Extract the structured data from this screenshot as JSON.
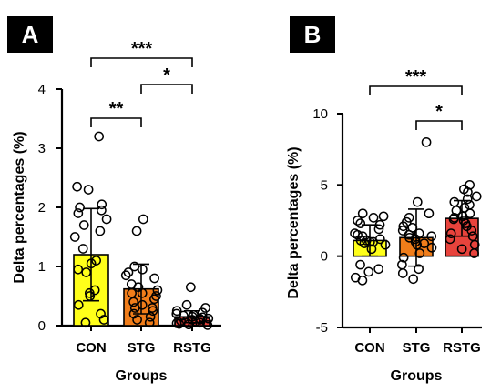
{
  "chart_data": [
    {
      "panel": "A",
      "type": "bar",
      "categories": [
        "CON",
        "STG",
        "RSTG"
      ],
      "values": [
        1.2,
        0.62,
        0.15
      ],
      "errors": [
        0.78,
        0.42,
        0.1
      ],
      "colors": [
        "#ffff1a",
        "#f07d1a",
        "#e8433c"
      ],
      "points": [
        [
          3.2,
          2.35,
          2.3,
          2.05,
          2.0,
          1.95,
          1.9,
          1.8,
          1.7,
          1.6,
          1.5,
          1.3,
          1.1,
          1.05,
          0.95,
          0.9,
          0.6,
          0.55,
          0.5,
          0.35,
          0.2,
          0.1,
          0.05
        ],
        [
          1.8,
          1.6,
          1.0,
          0.95,
          0.9,
          0.85,
          0.8,
          0.7,
          0.65,
          0.6,
          0.55,
          0.55,
          0.5,
          0.45,
          0.4,
          0.35,
          0.3,
          0.3,
          0.25,
          0.2,
          0.15,
          0.1,
          0.05
        ],
        [
          0.65,
          0.35,
          0.3,
          0.25,
          0.22,
          0.2,
          0.18,
          0.17,
          0.15,
          0.14,
          0.12,
          0.12,
          0.1,
          0.1,
          0.08,
          0.07,
          0.06,
          0.05,
          0.05,
          0.04,
          0.03,
          0.02,
          0.01
        ]
      ],
      "ylim": [
        0,
        4
      ],
      "yticks": [
        "0",
        "1",
        "2",
        "3",
        "4"
      ],
      "ylabel": "Delta percentages (%)",
      "xlabel": "Groups",
      "comparisons": [
        {
          "from": 0,
          "to": 1,
          "label": "**"
        },
        {
          "from": 1,
          "to": 2,
          "label": "*"
        },
        {
          "from": 0,
          "to": 2,
          "label": "***"
        }
      ]
    },
    {
      "panel": "B",
      "type": "bar",
      "categories": [
        "CON",
        "STG",
        "RSTG"
      ],
      "values": [
        1.1,
        1.3,
        2.65
      ],
      "errors": [
        1.1,
        2.0,
        1.25
      ],
      "colors": [
        "#ffff1a",
        "#f07d1a",
        "#e8433c"
      ],
      "points": [
        [
          3.0,
          2.8,
          2.7,
          2.5,
          2.3,
          2.2,
          1.9,
          1.6,
          1.5,
          1.4,
          1.2,
          1.1,
          1.1,
          1.0,
          1.0,
          0.9,
          0.8,
          0.5,
          -0.6,
          -0.9,
          -1.1,
          -1.5,
          -1.7
        ],
        [
          8.0,
          3.8,
          3.0,
          2.7,
          2.4,
          2.1,
          2.0,
          1.8,
          1.6,
          1.5,
          1.4,
          1.3,
          1.2,
          1.0,
          0.9,
          0.8,
          0.6,
          0.2,
          -0.1,
          -0.6,
          -0.9,
          -1.2,
          -1.6
        ],
        [
          5.0,
          4.7,
          4.5,
          4.2,
          4.0,
          3.8,
          3.6,
          3.4,
          3.2,
          3.0,
          2.8,
          2.7,
          2.6,
          2.5,
          2.3,
          2.1,
          1.8,
          1.6,
          1.4,
          1.2,
          0.8,
          0.5,
          0.2
        ]
      ],
      "ylim": [
        -5,
        10
      ],
      "yticks": [
        "-5",
        "0",
        "5",
        "10"
      ],
      "ylabel": "Delta percentages (%)",
      "xlabel": "Groups",
      "comparisons": [
        {
          "from": 1,
          "to": 2,
          "label": "*"
        },
        {
          "from": 0,
          "to": 2,
          "label": "***"
        }
      ]
    }
  ]
}
